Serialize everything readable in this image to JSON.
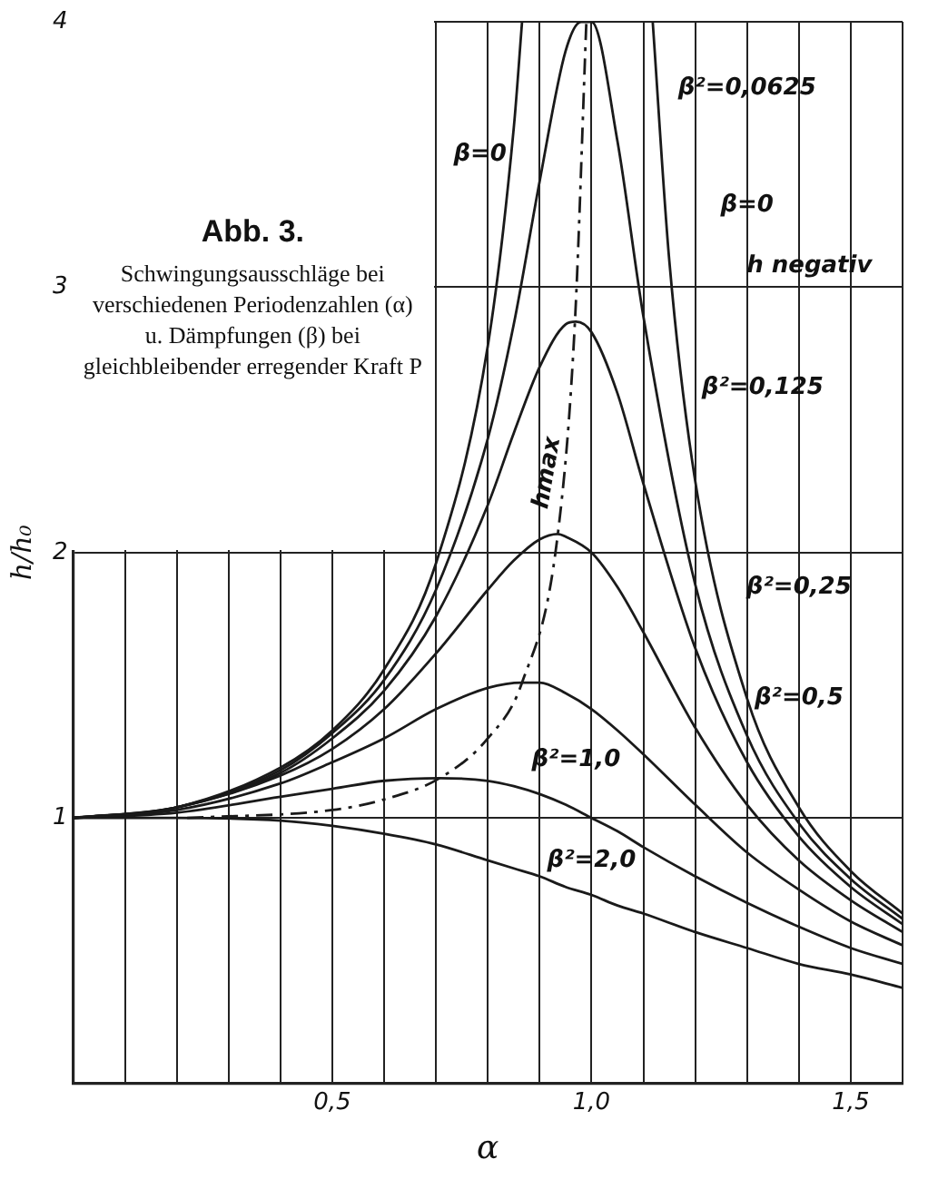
{
  "chart_data": {
    "type": "line",
    "title": "Abb. 3.",
    "subtitle": "Schwingungsausschläge bei verschiedenen Periodenzahlen (α) u. Dämpfungen (β) bei gleichbleibender erregender Kraft P",
    "xlabel": "α",
    "ylabel": "h/h₀",
    "xlim": [
      0,
      1.6
    ],
    "ylim": [
      0,
      4
    ],
    "xticks": [
      {
        "value": 0,
        "label": null
      },
      {
        "value": 0.1,
        "label": null
      },
      {
        "value": 0.2,
        "label": null
      },
      {
        "value": 0.3,
        "label": null
      },
      {
        "value": 0.4,
        "label": null
      },
      {
        "value": 0.5,
        "label": "0,5"
      },
      {
        "value": 0.6,
        "label": null
      },
      {
        "value": 0.7,
        "label": null
      },
      {
        "value": 0.8,
        "label": null
      },
      {
        "value": 0.9,
        "label": null
      },
      {
        "value": 1.0,
        "label": "1,0"
      },
      {
        "value": 1.1,
        "label": null
      },
      {
        "value": 1.2,
        "label": null
      },
      {
        "value": 1.3,
        "label": null
      },
      {
        "value": 1.4,
        "label": null
      },
      {
        "value": 1.5,
        "label": "1,5"
      },
      {
        "value": 1.6,
        "label": null
      }
    ],
    "yticks": [
      1,
      2,
      3,
      4
    ],
    "grid": true,
    "legend": false,
    "marker": "none",
    "series": [
      {
        "color": "#1a1a1a",
        "x": [
          0,
          0.2,
          0.4,
          0.5,
          0.6,
          0.7,
          0.8,
          0.85,
          0.866
        ],
        "values": [
          1,
          1.04,
          1.19,
          1.33,
          1.56,
          1.96,
          2.78,
          3.6,
          4.0
        ]
      },
      {
        "color": "#1a1a1a",
        "x": [
          1.118,
          1.15,
          1.2,
          1.3,
          1.4,
          1.5,
          1.6
        ],
        "values": [
          4.0,
          3.1,
          2.27,
          1.45,
          1.04,
          0.8,
          0.64
        ]
      },
      {
        "color": "#1a1a1a",
        "x": [
          0,
          0.2,
          0.4,
          0.5,
          0.6,
          0.7,
          0.8,
          0.85,
          0.9,
          0.95,
          0.98,
          1.0,
          1.05,
          1.1,
          1.2,
          1.3,
          1.4,
          1.5,
          1.6
        ],
        "values": [
          1,
          1.04,
          1.18,
          1.32,
          1.52,
          1.86,
          2.43,
          2.86,
          3.4,
          3.89,
          4.0,
          4.0,
          3.55,
          2.89,
          1.88,
          1.31,
          0.98,
          0.77,
          0.62
        ]
      },
      {
        "color": "#1a1a1a",
        "x": [
          0,
          0.2,
          0.4,
          0.5,
          0.6,
          0.7,
          0.8,
          0.85,
          0.9,
          0.95,
          0.97,
          1.0,
          1.05,
          1.1,
          1.2,
          1.3,
          1.4,
          1.5,
          1.6
        ],
        "values": [
          1,
          1.04,
          1.17,
          1.3,
          1.48,
          1.76,
          2.18,
          2.45,
          2.7,
          2.86,
          2.87,
          2.83,
          2.6,
          2.26,
          1.64,
          1.21,
          0.93,
          0.74,
          0.6
        ]
      },
      {
        "color": "#1a1a1a",
        "x": [
          0,
          0.2,
          0.4,
          0.5,
          0.6,
          0.7,
          0.8,
          0.85,
          0.9,
          0.935,
          0.95,
          1.0,
          1.05,
          1.1,
          1.2,
          1.3,
          1.4,
          1.5,
          1.6
        ],
        "values": [
          1,
          1.04,
          1.16,
          1.26,
          1.41,
          1.62,
          1.86,
          1.97,
          2.05,
          2.07,
          2.06,
          2.0,
          1.87,
          1.7,
          1.34,
          1.05,
          0.84,
          0.69,
          0.57
        ]
      },
      {
        "color": "#1a1a1a",
        "x": [
          0,
          0.2,
          0.4,
          0.5,
          0.6,
          0.7,
          0.8,
          0.866,
          0.9,
          0.95,
          1.0,
          1.05,
          1.1,
          1.2,
          1.3,
          1.4,
          1.5,
          1.6
        ],
        "values": [
          1,
          1.03,
          1.13,
          1.21,
          1.3,
          1.41,
          1.49,
          1.51,
          1.51,
          1.47,
          1.41,
          1.33,
          1.24,
          1.05,
          0.87,
          0.73,
          0.61,
          0.52
        ]
      },
      {
        "color": "#1a1a1a",
        "x": [
          0,
          0.2,
          0.4,
          0.5,
          0.6,
          0.707,
          0.8,
          0.85,
          0.9,
          0.95,
          1.0,
          1.05,
          1.1,
          1.2,
          1.3,
          1.4,
          1.5,
          1.6
        ],
        "values": [
          1,
          1.02,
          1.08,
          1.11,
          1.14,
          1.15,
          1.14,
          1.12,
          1.09,
          1.05,
          1.0,
          0.95,
          0.89,
          0.78,
          0.68,
          0.59,
          0.51,
          0.45
        ]
      },
      {
        "color": "#1a1a1a",
        "x": [
          0,
          0.2,
          0.4,
          0.5,
          0.6,
          0.7,
          0.8,
          0.85,
          0.9,
          0.95,
          1.0,
          1.05,
          1.1,
          1.2,
          1.3,
          1.4,
          1.5,
          1.6
        ],
        "values": [
          1,
          1.0,
          0.99,
          0.97,
          0.94,
          0.9,
          0.84,
          0.81,
          0.78,
          0.74,
          0.71,
          0.67,
          0.64,
          0.57,
          0.51,
          0.45,
          0.41,
          0.36
        ]
      },
      {
        "color": "#1a1a1a",
        "line_style": "dashed",
        "x": [
          0.22,
          0.5,
          0.6,
          0.707,
          0.8,
          0.866,
          0.935,
          0.968,
          0.99
        ],
        "values": [
          1.0,
          1.03,
          1.07,
          1.15,
          1.3,
          1.51,
          2.07,
          2.87,
          4.0
        ]
      }
    ],
    "annotations": [
      "β²=0,0625",
      "β=0",
      "β=0",
      "h negativ",
      "β²=0,125",
      "hmax",
      "β²=0,25",
      "β²=0,5",
      "β²=1,0",
      "β²=2,0"
    ]
  }
}
